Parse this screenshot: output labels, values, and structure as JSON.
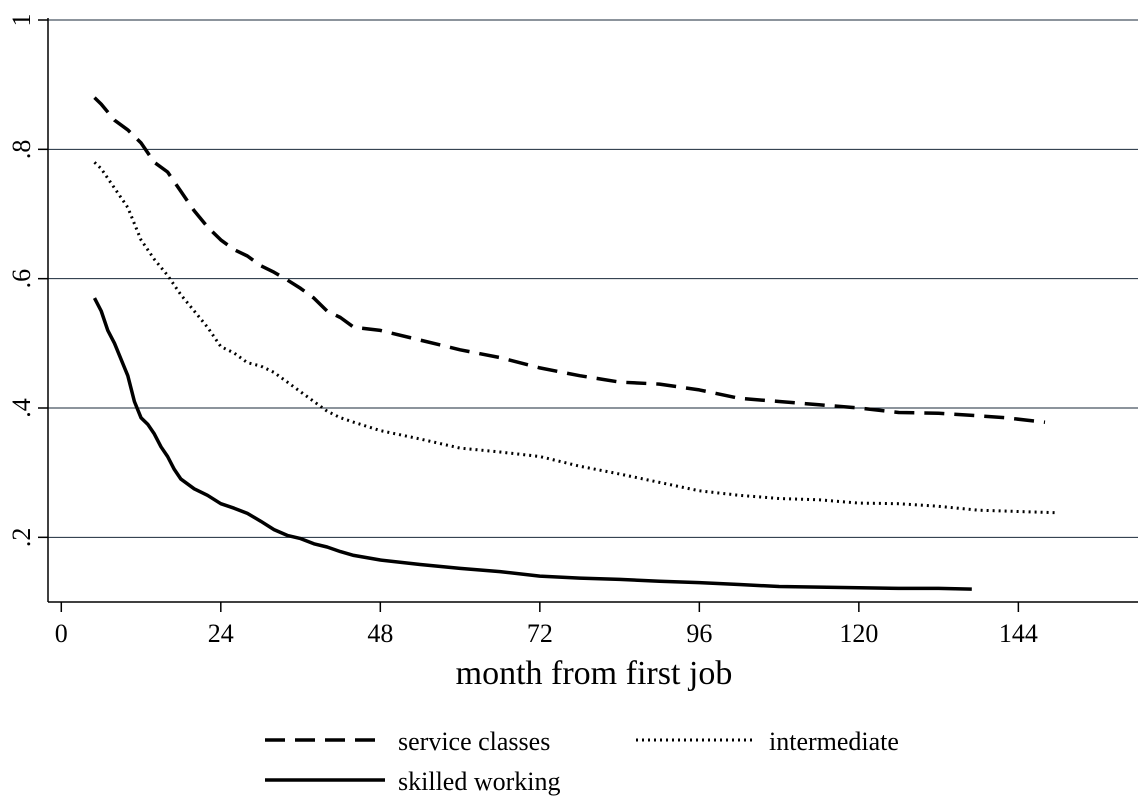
{
  "chart_data": {
    "type": "line",
    "title": "",
    "xlabel": "month from first job",
    "ylabel": "",
    "xlim": [
      -2,
      162
    ],
    "ylim": [
      0.1,
      1.0
    ],
    "xticks": [
      0,
      24,
      48,
      72,
      96,
      120,
      144
    ],
    "xtick_labels": [
      "0",
      "24",
      "48",
      "72",
      "96",
      "120",
      "144"
    ],
    "yticks": [
      0.2,
      0.4,
      0.6,
      0.8,
      1.0
    ],
    "ytick_labels": [
      ".2",
      ".4",
      ".6",
      ".8",
      "1"
    ],
    "grid": "horizontal",
    "legend_position": "bottom",
    "series": [
      {
        "name": "service classes",
        "style": "dashed",
        "color": "#000000",
        "x": [
          5,
          6,
          8,
          10,
          12,
          14,
          16,
          18,
          20,
          22,
          24,
          26,
          28,
          30,
          32,
          34,
          36,
          38,
          40,
          42,
          44,
          48,
          54,
          60,
          66,
          72,
          78,
          84,
          90,
          96,
          102,
          108,
          114,
          120,
          126,
          132,
          138,
          142,
          148
        ],
        "y": [
          0.88,
          0.87,
          0.845,
          0.83,
          0.81,
          0.78,
          0.765,
          0.735,
          0.705,
          0.68,
          0.66,
          0.645,
          0.635,
          0.62,
          0.61,
          0.598,
          0.585,
          0.57,
          0.55,
          0.54,
          0.525,
          0.52,
          0.505,
          0.49,
          0.478,
          0.462,
          0.45,
          0.44,
          0.437,
          0.428,
          0.415,
          0.41,
          0.405,
          0.4,
          0.393,
          0.392,
          0.388,
          0.385,
          0.378
        ]
      },
      {
        "name": "intermediate",
        "style": "dotted",
        "color": "#000000",
        "x": [
          5,
          6,
          8,
          10,
          12,
          14,
          16,
          18,
          20,
          22,
          24,
          26,
          28,
          30,
          32,
          34,
          36,
          38,
          40,
          42,
          44,
          48,
          54,
          60,
          66,
          72,
          78,
          84,
          90,
          96,
          102,
          108,
          114,
          120,
          126,
          132,
          138,
          144,
          150
        ],
        "y": [
          0.78,
          0.77,
          0.74,
          0.71,
          0.66,
          0.63,
          0.605,
          0.575,
          0.55,
          0.525,
          0.495,
          0.485,
          0.47,
          0.465,
          0.455,
          0.44,
          0.425,
          0.41,
          0.395,
          0.385,
          0.378,
          0.365,
          0.352,
          0.338,
          0.332,
          0.325,
          0.31,
          0.298,
          0.285,
          0.272,
          0.265,
          0.26,
          0.258,
          0.253,
          0.252,
          0.248,
          0.242,
          0.24,
          0.238
        ]
      },
      {
        "name": "skilled working",
        "style": "solid",
        "color": "#000000",
        "x": [
          5,
          6,
          7,
          8,
          10,
          11,
          12,
          13,
          14,
          15,
          16,
          17,
          18,
          20,
          22,
          24,
          26,
          28,
          30,
          32,
          34,
          36,
          38,
          40,
          42,
          44,
          48,
          54,
          60,
          66,
          72,
          78,
          84,
          90,
          96,
          102,
          108,
          114,
          120,
          126,
          132,
          137
        ],
        "y": [
          0.57,
          0.55,
          0.52,
          0.5,
          0.45,
          0.41,
          0.385,
          0.375,
          0.36,
          0.34,
          0.325,
          0.305,
          0.29,
          0.275,
          0.265,
          0.252,
          0.245,
          0.237,
          0.225,
          0.212,
          0.203,
          0.198,
          0.19,
          0.185,
          0.178,
          0.172,
          0.165,
          0.158,
          0.152,
          0.147,
          0.14,
          0.137,
          0.135,
          0.132,
          0.13,
          0.127,
          0.124,
          0.123,
          0.122,
          0.121,
          0.121,
          0.12
        ]
      }
    ]
  }
}
